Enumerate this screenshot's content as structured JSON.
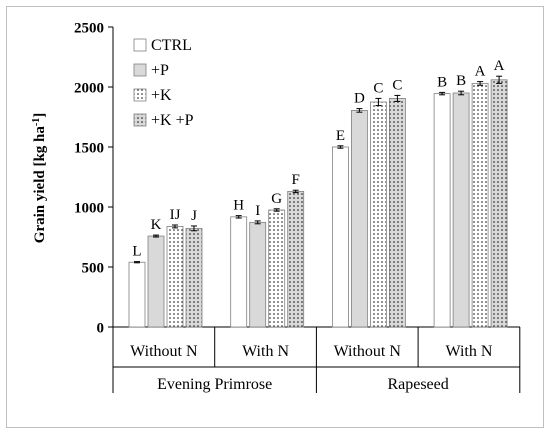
{
  "chart_data": {
    "type": "bar",
    "ylabel": "Grain yield  [kg ha",
    "ylabel_sup": "-1",
    "ylabel_close": "]",
    "ylim": [
      0,
      2500
    ],
    "yticks": [
      "0",
      "500",
      "1000",
      "1500",
      "2000",
      "2500"
    ],
    "ytick_values": [
      0,
      500,
      1000,
      1500,
      2000,
      2500
    ],
    "grid": false,
    "legend_position": "top-left",
    "groups": [
      {
        "label": "Without N",
        "crop": "Evening Primrose",
        "values": [
          540,
          758,
          838,
          822
        ],
        "errors": [
          5,
          8,
          12,
          20
        ],
        "letters": [
          "L",
          "K",
          "IJ",
          "J"
        ]
      },
      {
        "label": "With N",
        "crop": "Evening Primrose",
        "values": [
          918,
          872,
          975,
          1130
        ],
        "errors": [
          10,
          12,
          10,
          10
        ],
        "letters": [
          "H",
          "I",
          "G",
          "F"
        ]
      },
      {
        "label": "Without N",
        "crop": "Rapeseed",
        "values": [
          1500,
          1805,
          1875,
          1905
        ],
        "errors": [
          10,
          15,
          30,
          25
        ],
        "letters": [
          "E",
          "D",
          "C",
          "C"
        ]
      },
      {
        "label": "With N",
        "crop": "Rapeseed",
        "values": [
          1945,
          1950,
          2030,
          2060
        ],
        "errors": [
          10,
          15,
          15,
          30
        ],
        "letters": [
          "B",
          "B",
          "A",
          "A"
        ]
      }
    ],
    "crops": [
      "Evening Primrose",
      "Rapeseed"
    ],
    "series": [
      {
        "name": "CTRL",
        "fill": "#ffffff",
        "pattern": "none"
      },
      {
        "name": "+P",
        "fill": "#d9d9d9",
        "pattern": "none"
      },
      {
        "name": "+K",
        "fill": "#ffffff",
        "pattern": "dots"
      },
      {
        "name": "+K +P",
        "fill": "#d9d9d9",
        "pattern": "dots"
      }
    ]
  }
}
